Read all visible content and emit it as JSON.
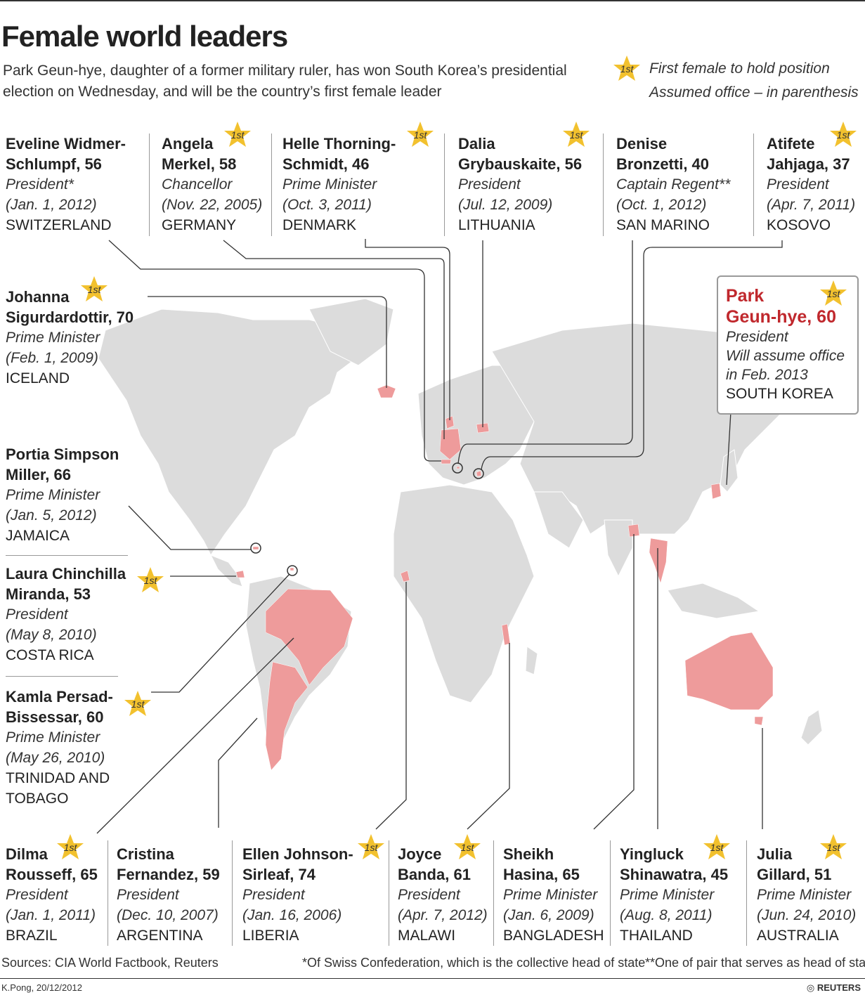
{
  "title": "Female world leaders",
  "subtitle": "Park Geun-hye, daughter of a former military ruler, has won South Korea’s presidential election on Wednesday, and will be the country’s first female leader",
  "legend": {
    "star_label": "1st",
    "first_female": "First female to hold position",
    "assumed_office": "Assumed office – in parenthesis"
  },
  "colors": {
    "land": "#dcdcdc",
    "highlight": "#ee9b9b",
    "line": "#333333",
    "star": "#f2c12e",
    "park_name": "#c0282d"
  },
  "leaders": {
    "switzerland": {
      "name": "Eveline Widmer-\nSchlumpf, 56",
      "role": "President*",
      "date": "(Jan. 1, 2012)",
      "country": "SWITZERLAND"
    },
    "germany": {
      "name": "Angela\nMerkel, 58",
      "role": "Chancellor",
      "date": "(Nov. 22, 2005)",
      "country": "GERMANY"
    },
    "denmark": {
      "name": "Helle Thorning-\nSchmidt, 46",
      "role": "Prime Minister",
      "date": "(Oct. 3, 2011)",
      "country": "DENMARK"
    },
    "lithuania": {
      "name": "Dalia\nGrybauskaite, 56",
      "role": "President",
      "date": "(Jul. 12, 2009)",
      "country": "LITHUANIA"
    },
    "san_marino": {
      "name": "Denise\nBronzetti, 40",
      "role": "Captain Regent**",
      "date": "(Oct. 1, 2012)",
      "country": "SAN MARINO"
    },
    "kosovo": {
      "name": "Atifete\nJahjaga, 37",
      "role": "President",
      "date": "(Apr. 7, 2011)",
      "country": "KOSOVO"
    },
    "iceland": {
      "name": "Johanna\nSigurdardottir, 70",
      "role": "Prime Minister",
      "date": "(Feb. 1, 2009)",
      "country": "ICELAND"
    },
    "jamaica": {
      "name": "Portia Simpson\nMiller, 66",
      "role": "Prime Minister",
      "date": "(Jan. 5, 2012)",
      "country": "JAMAICA"
    },
    "costa_rica": {
      "name": "Laura Chinchilla\nMiranda, 53",
      "role": "President",
      "date": "(May 8, 2010)",
      "country": "COSTA RICA"
    },
    "trinidad": {
      "name": "Kamla Persad-\nBissessar, 60",
      "role": "Prime Minister",
      "date": "(May 26, 2010)",
      "country": "TRINIDAD AND\nTOBAGO"
    },
    "south_korea": {
      "name": "Park\nGeun-hye, 60",
      "role": "President",
      "date": "Will assume office",
      "date2": "in Feb. 2013",
      "country": "SOUTH KOREA"
    },
    "brazil": {
      "name": "Dilma\nRousseff, 65",
      "role": "President",
      "date": "(Jan. 1, 2011)",
      "country": "BRAZIL"
    },
    "argentina": {
      "name": "Cristina\nFernandez, 59",
      "role": "President",
      "date": "(Dec. 10, 2007)",
      "country": "ARGENTINA"
    },
    "liberia": {
      "name": "Ellen Johnson-\nSirleaf, 74",
      "role": "President",
      "date": "(Jan. 16, 2006)",
      "country": "LIBERIA"
    },
    "malawi": {
      "name": "Joyce\nBanda, 61",
      "role": "President",
      "date": "(Apr. 7, 2012)",
      "country": "MALAWI"
    },
    "bangladesh": {
      "name": "Sheikh\nHasina, 65",
      "role": "Prime Minister",
      "date": "(Jan. 6, 2009)",
      "country": "BANGLADESH"
    },
    "thailand": {
      "name": "Yingluck\nShinawatra, 45",
      "role": "Prime Minister",
      "date": "(Aug. 8, 2011)",
      "country": "THAILAND"
    },
    "australia": {
      "name": "Julia\nGillard, 51",
      "role": "Prime Minister",
      "date": "(Jun. 24, 2010)",
      "country": "AUSTRALIA"
    }
  },
  "footer": {
    "sources": "Sources: CIA World Factbook, Reuters",
    "note_swiss": "*Of Swiss Confederation, which is the collective head of state",
    "note_san_marino": "**One of pair that serves as head of state",
    "credit": "K.Pong, 20/12/2012",
    "agency": "REUTERS"
  }
}
